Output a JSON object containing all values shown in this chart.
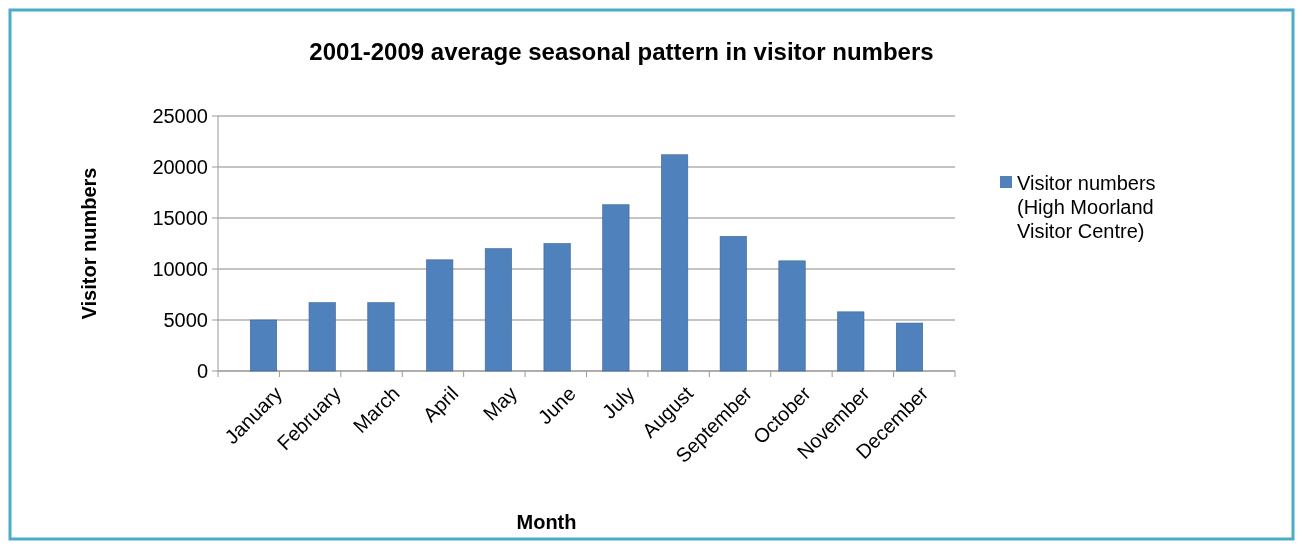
{
  "chart_data": {
    "type": "bar",
    "title": "2001-2009 average seasonal pattern in visitor numbers",
    "xlabel": "Month",
    "ylabel": "Visitor numbers",
    "categories": [
      "January",
      "February",
      "March",
      "April",
      "May",
      "June",
      "July",
      "August",
      "September",
      "October",
      "November",
      "December"
    ],
    "series": [
      {
        "name": "Visitor numbers (High Moorland Visitor Centre)",
        "color": "#4f81bd",
        "values": [
          5000,
          6700,
          6700,
          10900,
          12000,
          12500,
          16300,
          21200,
          13200,
          10800,
          5800,
          4700
        ]
      }
    ],
    "ylim": [
      0,
      25000
    ],
    "yticks": [
      0,
      5000,
      10000,
      15000,
      20000,
      25000
    ],
    "grid": "y",
    "legend": "right"
  }
}
